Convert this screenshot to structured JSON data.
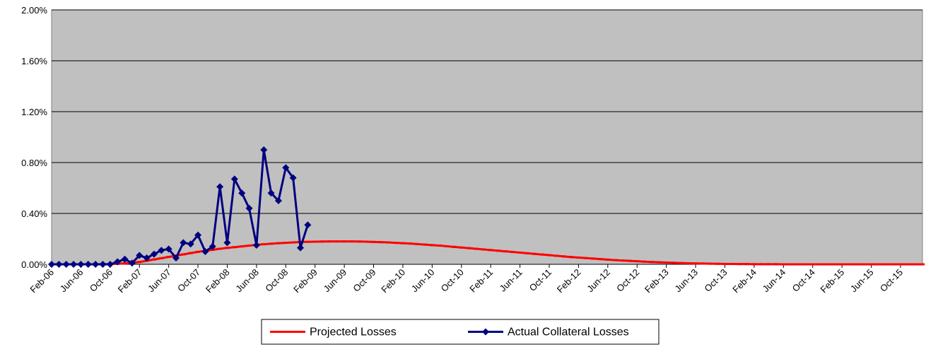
{
  "chart_data": {
    "type": "line",
    "categories": [
      "Feb-06",
      null,
      null,
      null,
      "Jun-06",
      null,
      null,
      null,
      "Oct-06",
      null,
      null,
      null,
      "Feb-07",
      null,
      null,
      null,
      "Jun-07",
      null,
      null,
      null,
      "Oct-07",
      null,
      null,
      null,
      "Feb-08",
      null,
      null,
      null,
      "Jun-08",
      null,
      null,
      null,
      "Oct-08",
      null,
      null,
      null,
      "Feb-09",
      null,
      null,
      null,
      "Jun-09",
      null,
      null,
      null,
      "Oct-09",
      null,
      null,
      null,
      "Feb-10",
      null,
      null,
      null,
      "Jun-10",
      null,
      null,
      null,
      "Oct-10",
      null,
      null,
      null,
      "Feb-11",
      null,
      null,
      null,
      "Jun-11",
      null,
      null,
      null,
      "Oct-11",
      null,
      null,
      null,
      "Feb-12",
      null,
      null,
      null,
      "Jun-12",
      null,
      null,
      null,
      "Oct-12",
      null,
      null,
      null,
      "Feb-13",
      null,
      null,
      null,
      "Jun-13",
      null,
      null,
      null,
      "Oct-13",
      null,
      null,
      null,
      "Feb-14",
      null,
      null,
      null,
      "Jun-14",
      null,
      null,
      null,
      "Oct-14",
      null,
      null,
      null,
      "Feb-15",
      null,
      null,
      null,
      "Jun-15",
      null,
      null,
      null,
      "Oct-15",
      null,
      null,
      null
    ],
    "series": [
      {
        "name": "Projected Losses",
        "color": "#ff0000",
        "marker": "dash",
        "values": [
          0,
          0,
          0,
          0,
          0,
          0,
          0,
          0.001,
          0.002,
          0.004,
          0.007,
          0.012,
          0.018,
          0.028,
          0.038,
          0.048,
          0.058,
          0.068,
          0.078,
          0.088,
          0.098,
          0.106,
          0.114,
          0.122,
          0.129,
          0.135,
          0.141,
          0.147,
          0.153,
          0.158,
          0.162,
          0.166,
          0.169,
          0.172,
          0.175,
          0.177,
          0.178,
          0.179,
          0.18,
          0.18,
          0.18,
          0.18,
          0.179,
          0.178,
          0.176,
          0.174,
          0.172,
          0.169,
          0.166,
          0.163,
          0.159,
          0.155,
          0.151,
          0.147,
          0.142,
          0.137,
          0.132,
          0.127,
          0.122,
          0.117,
          0.112,
          0.107,
          0.102,
          0.097,
          0.092,
          0.087,
          0.082,
          0.077,
          0.072,
          0.067,
          0.062,
          0.057,
          0.053,
          0.049,
          0.045,
          0.041,
          0.037,
          0.033,
          0.03,
          0.027,
          0.024,
          0.021,
          0.018,
          0.016,
          0.014,
          0.012,
          0.01,
          0.008,
          0.007,
          0.006,
          0.005,
          0.004,
          0.003,
          0.003,
          0.002,
          0.002,
          0.001,
          0.001,
          0.001,
          0.001,
          0,
          0,
          0,
          0,
          0,
          0,
          0,
          0,
          0,
          0,
          0,
          0,
          0,
          0,
          0,
          0,
          0,
          0,
          0,
          0
        ]
      },
      {
        "name": "Actual Collateral Losses",
        "color": "#000080",
        "marker": "diamond",
        "values": [
          0,
          0,
          0,
          0,
          0,
          0,
          0,
          0,
          0,
          0.02,
          0.04,
          0.01,
          0.07,
          0.05,
          0.08,
          0.11,
          0.12,
          0.05,
          0.17,
          0.16,
          0.23,
          0.1,
          0.14,
          0.61,
          0.17,
          0.67,
          0.56,
          0.44,
          0.15,
          0.9,
          0.56,
          0.5,
          0.76,
          0.68,
          0.13,
          0.31,
          null,
          null,
          null,
          null,
          null,
          null,
          null,
          null,
          null,
          null,
          null,
          null,
          null,
          null,
          null,
          null,
          null,
          null,
          null,
          null,
          null,
          null,
          null,
          null,
          null,
          null,
          null,
          null,
          null,
          null,
          null,
          null,
          null,
          null,
          null,
          null,
          null,
          null,
          null,
          null,
          null,
          null,
          null,
          null,
          null,
          null,
          null,
          null,
          null,
          null,
          null,
          null,
          null,
          null,
          null,
          null,
          null,
          null,
          null,
          null,
          null,
          null,
          null,
          null,
          null,
          null,
          null,
          null,
          null,
          null,
          null,
          null,
          null,
          null,
          null,
          null,
          null,
          null,
          null,
          null,
          null,
          null,
          null,
          null
        ]
      }
    ],
    "ylim": [
      0,
      2
    ],
    "yticks": [
      {
        "value": 0,
        "label": "0.00%"
      },
      {
        "value": 0.4,
        "label": "0.40%"
      },
      {
        "value": 0.8,
        "label": "0.80%"
      },
      {
        "value": 1.2,
        "label": "1.20%"
      },
      {
        "value": 1.6,
        "label": "1.60%"
      },
      {
        "value": 2,
        "label": "2.00%"
      }
    ],
    "grid": true,
    "plot_background": "#c0c0c0",
    "legend": "bottom"
  }
}
